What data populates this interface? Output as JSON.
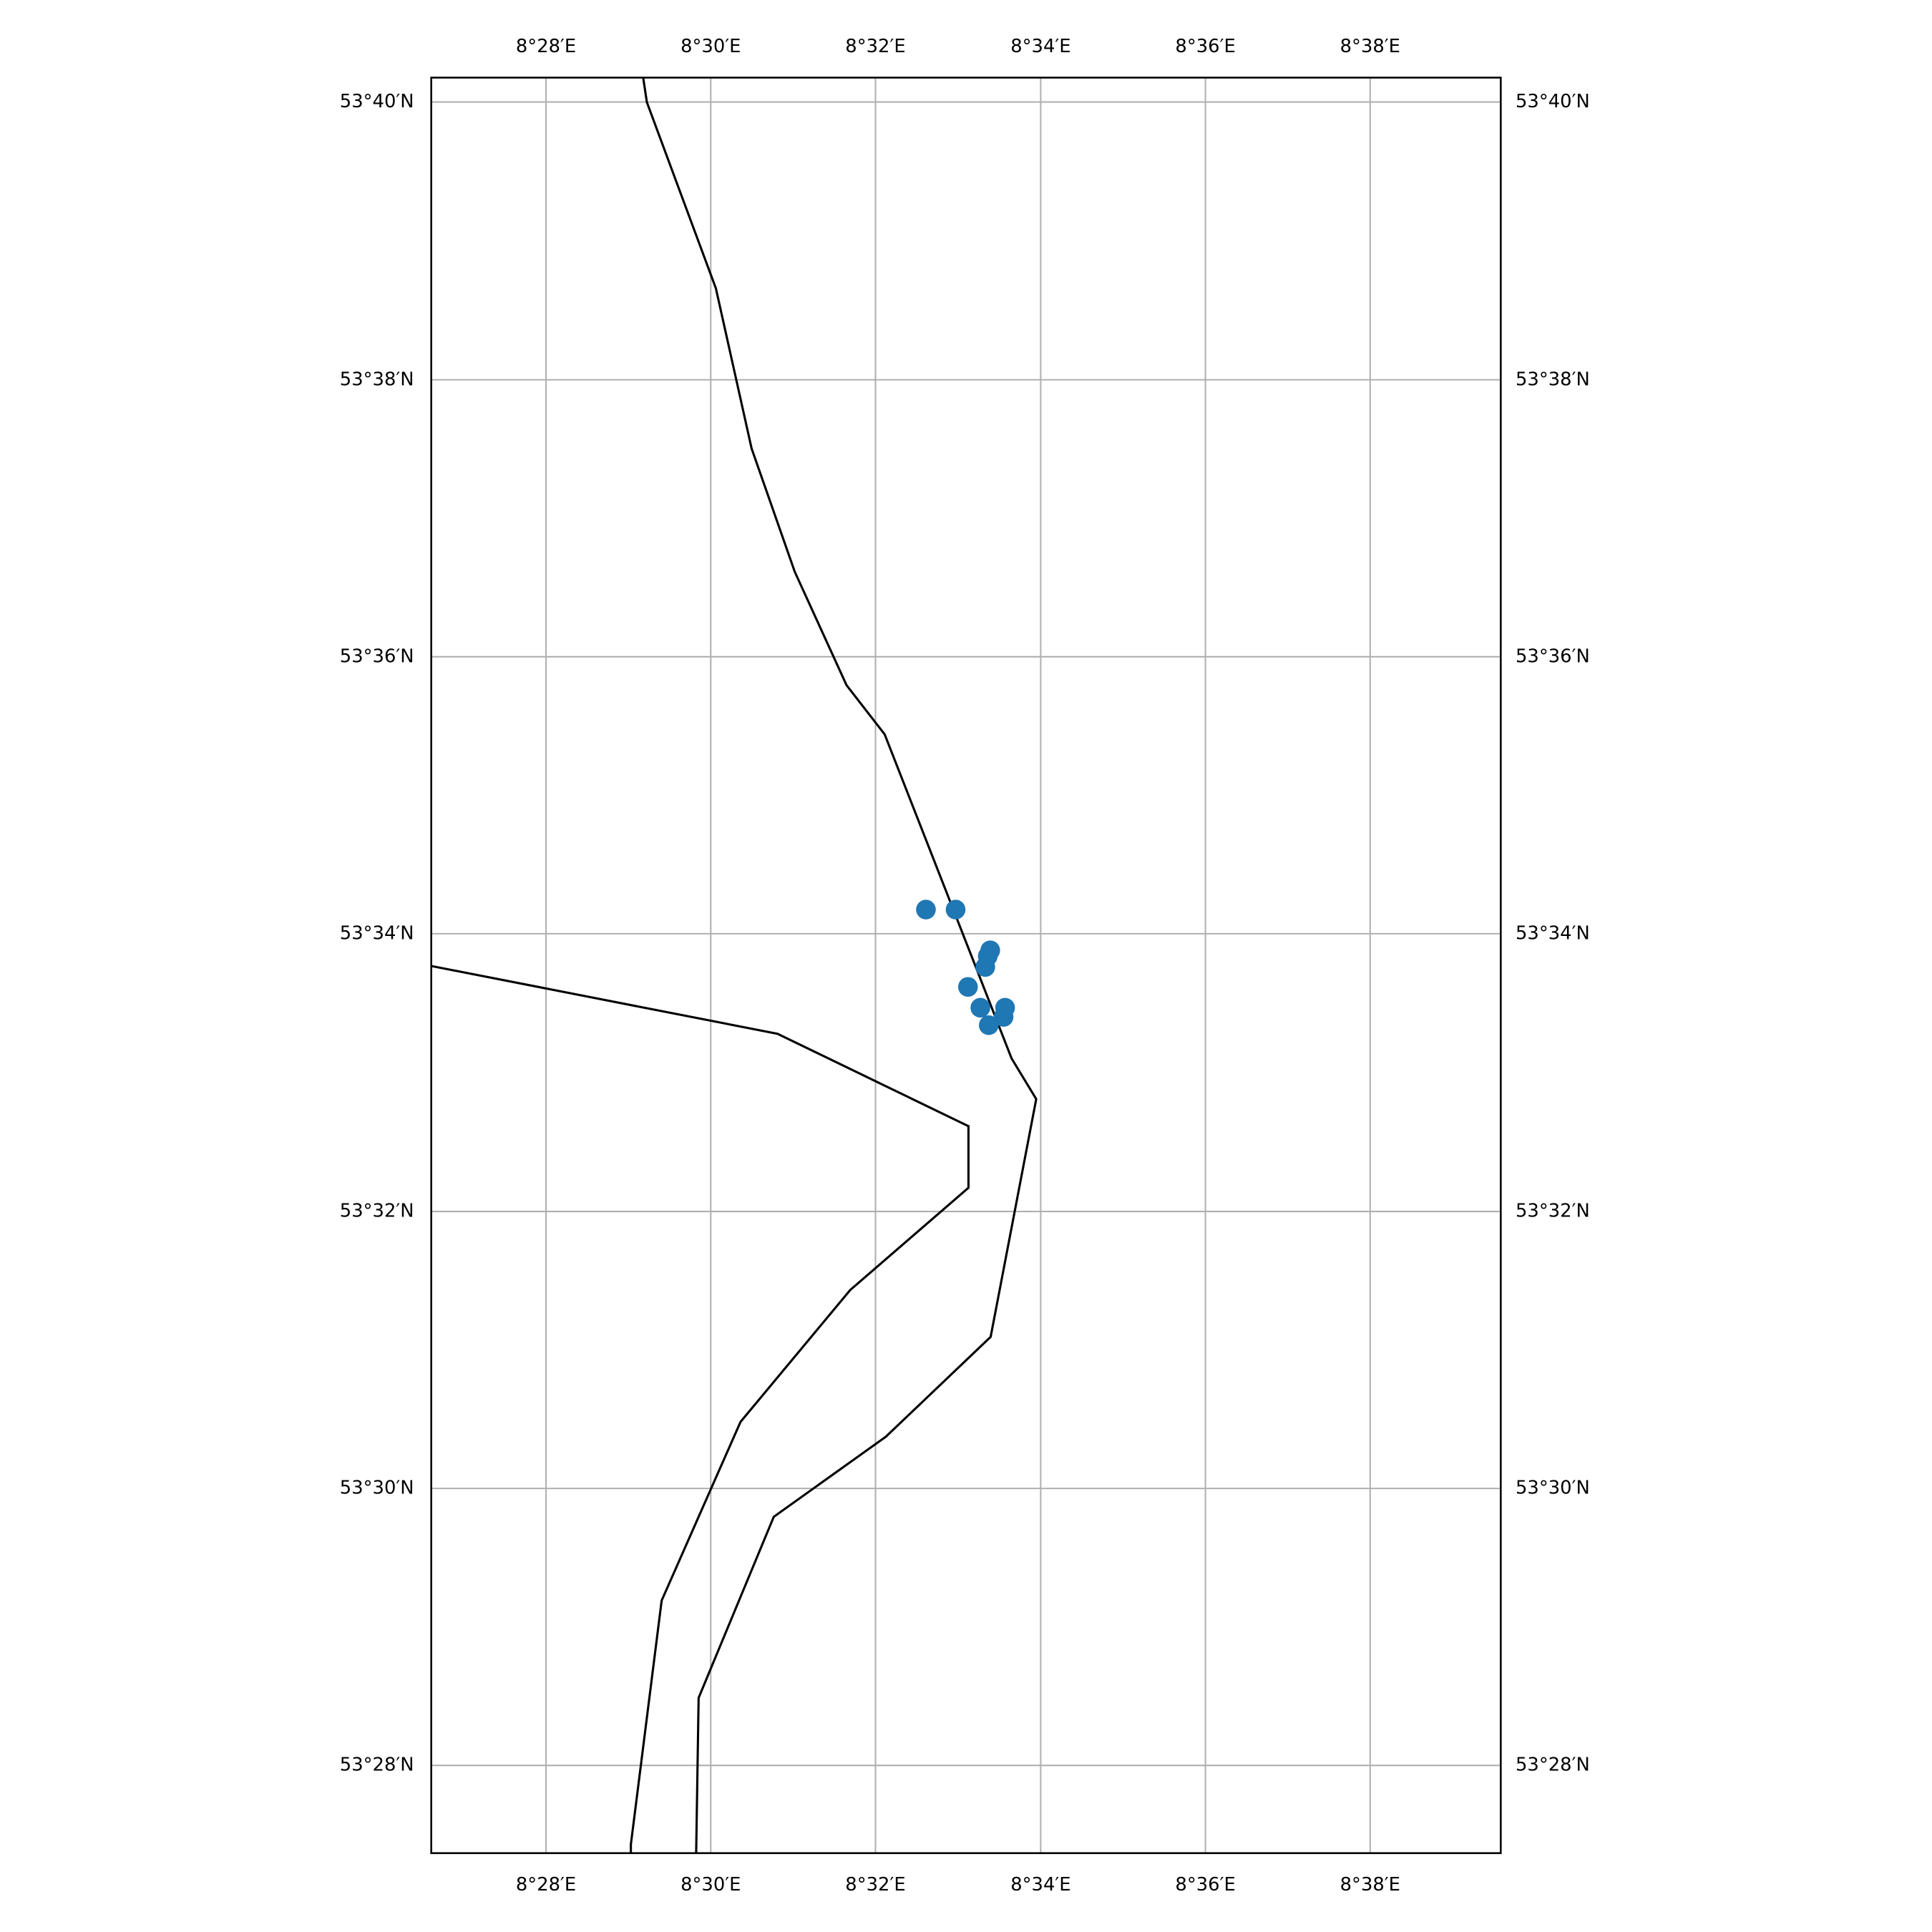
{
  "chart_data": {
    "type": "scatter",
    "xlim": [
      8.4435,
      8.6597
    ],
    "ylim": [
      53.45615,
      53.66963
    ],
    "xticks": [
      {
        "value": 8.4667,
        "label": "8°28′E"
      },
      {
        "value": 8.5,
        "label": "8°30′E"
      },
      {
        "value": 8.5333,
        "label": "8°32′E"
      },
      {
        "value": 8.5667,
        "label": "8°34′E"
      },
      {
        "value": 8.6,
        "label": "8°36′E"
      },
      {
        "value": 8.6333,
        "label": "8°38′E"
      }
    ],
    "yticks": [
      {
        "value": 53.4667,
        "label": "53°28′N"
      },
      {
        "value": 53.5,
        "label": "53°30′N"
      },
      {
        "value": 53.5333,
        "label": "53°32′N"
      },
      {
        "value": 53.5667,
        "label": "53°34′N"
      },
      {
        "value": 53.6,
        "label": "53°36′N"
      },
      {
        "value": 53.6333,
        "label": "53°38′N"
      },
      {
        "value": 53.6667,
        "label": "53°40′N"
      }
    ],
    "x": [
      8.5435,
      8.5495,
      8.5565,
      8.556,
      8.5555,
      8.552,
      8.5545,
      8.5595,
      8.5592,
      8.5562
    ],
    "values": [
      53.5696,
      53.5696,
      53.5647,
      53.564,
      53.5627,
      53.5603,
      53.5578,
      53.5578,
      53.5567,
      53.5557
    ],
    "color": "#1f77b4",
    "grid": true
  }
}
